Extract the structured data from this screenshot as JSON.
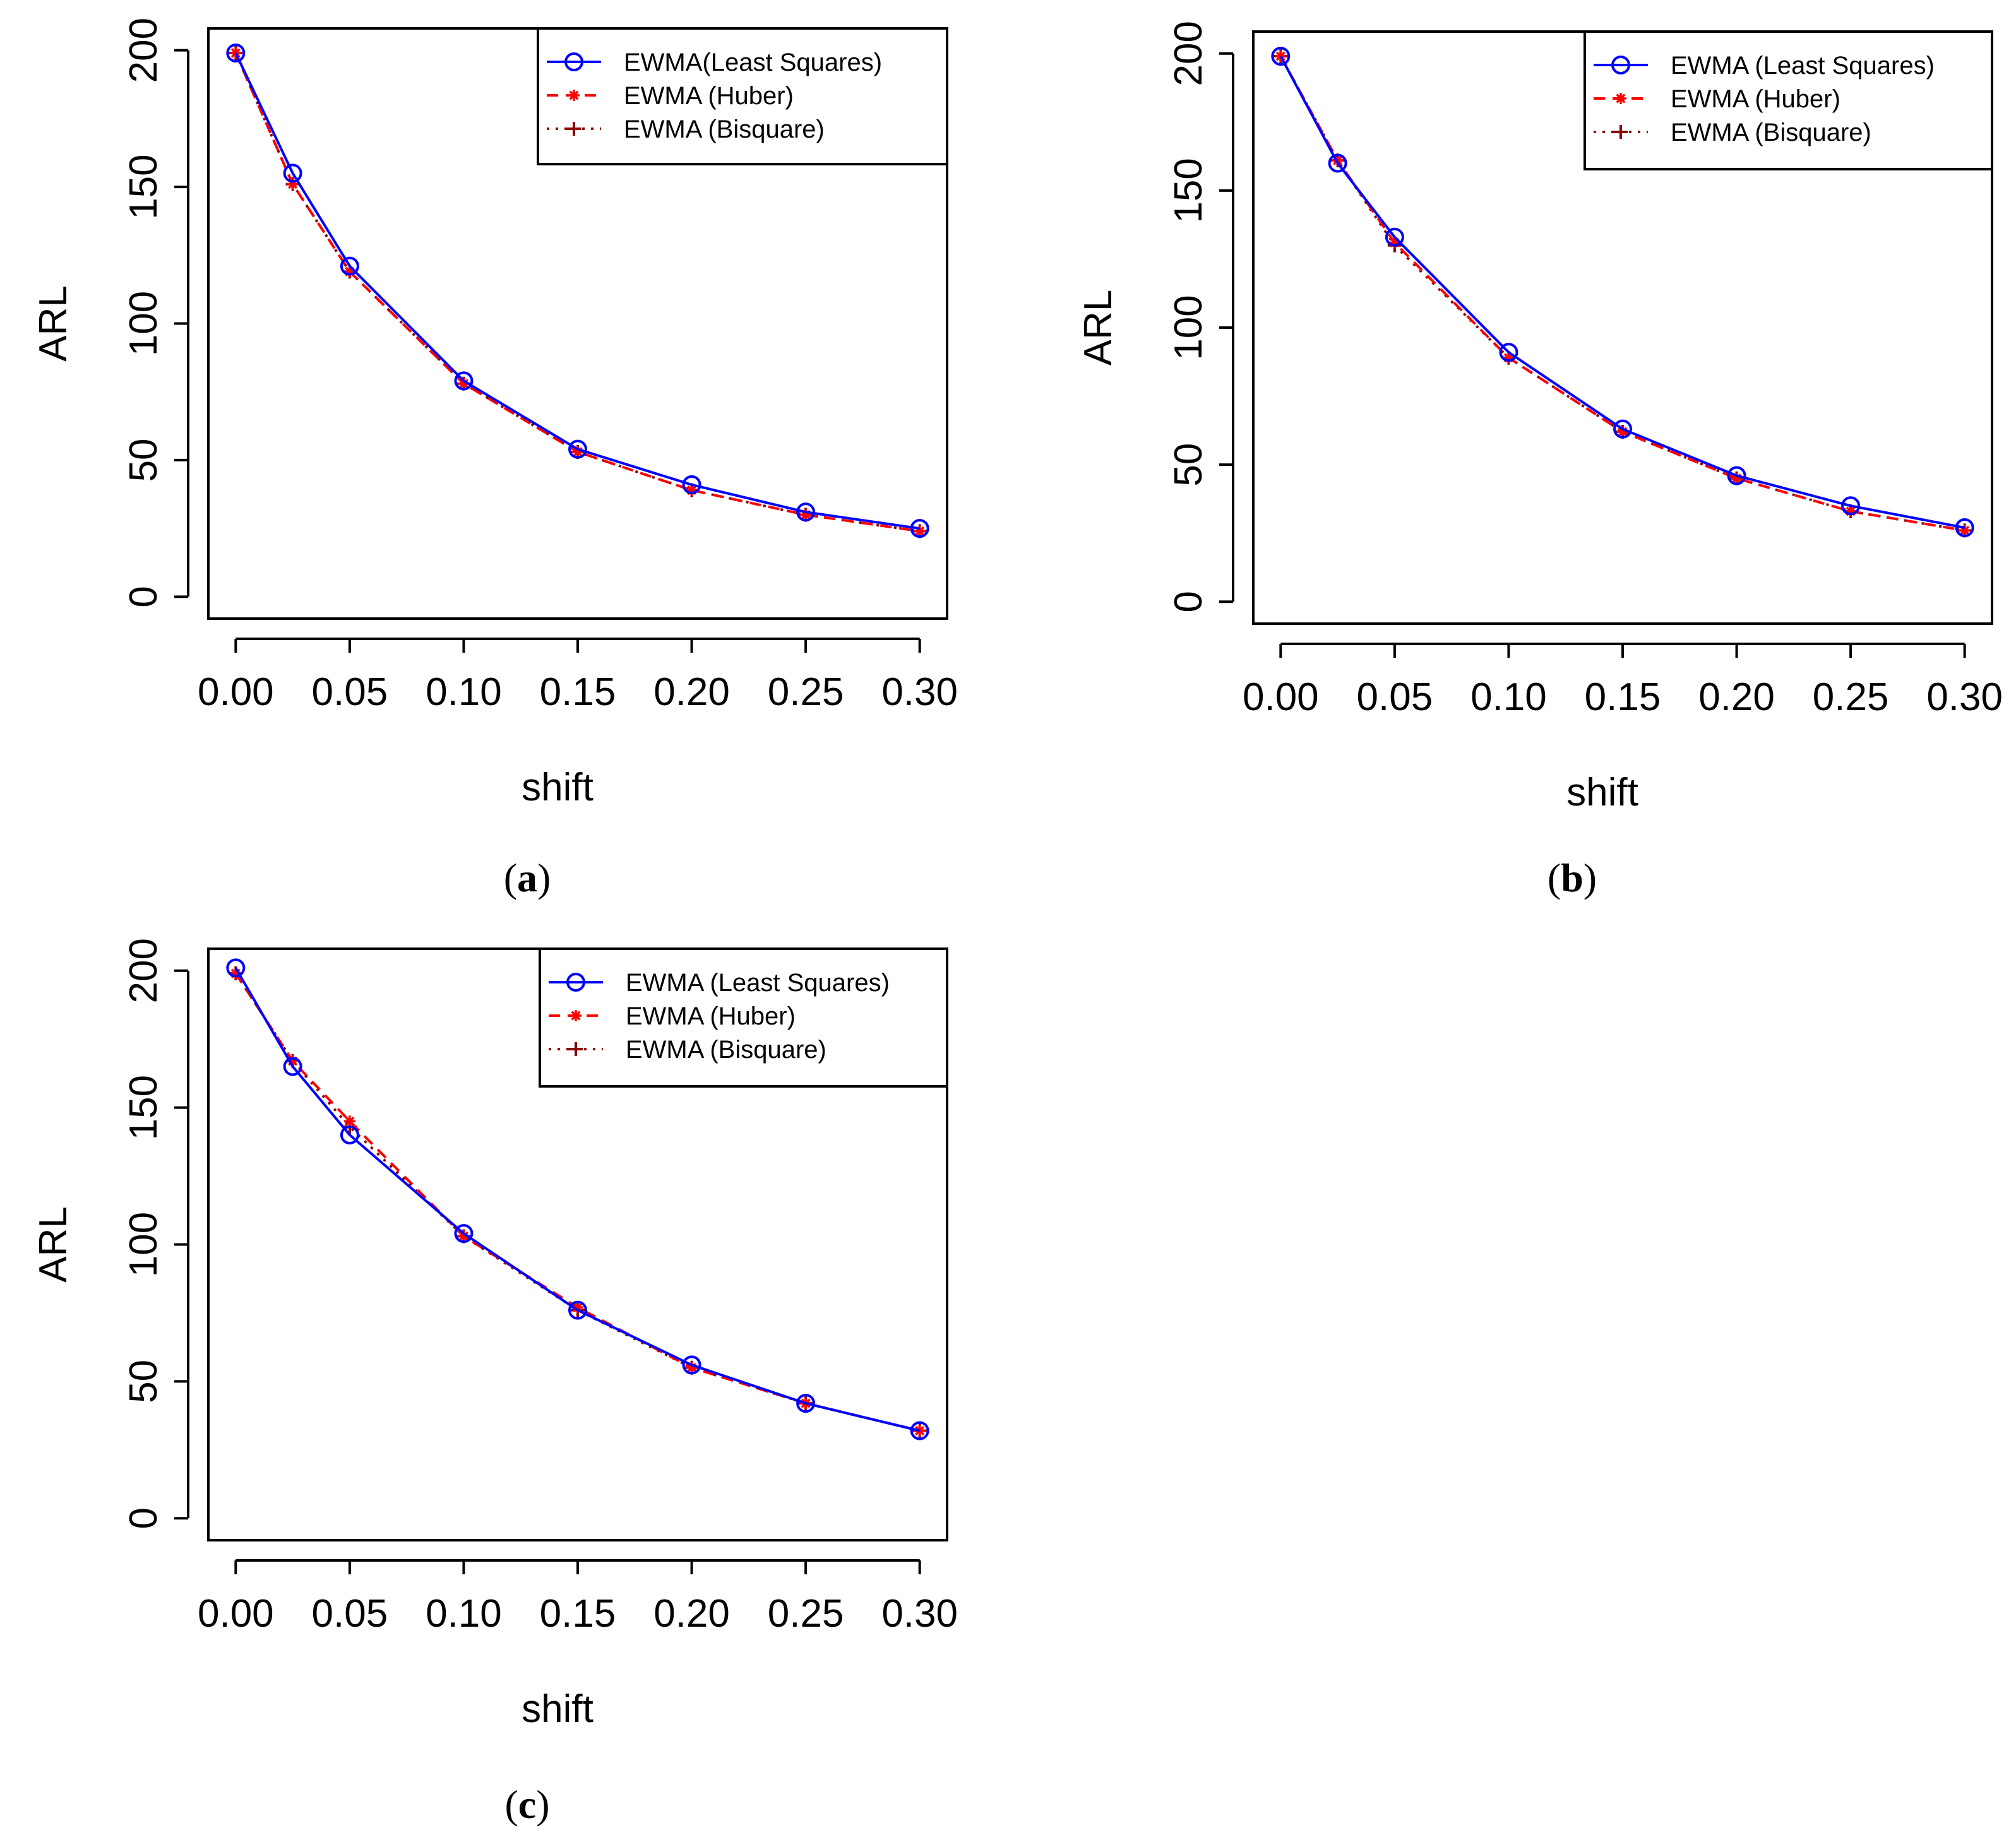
{
  "chart_data": [
    {
      "type": "line",
      "panel_label": "a",
      "title": "",
      "xlabel": "shift",
      "ylabel": "ARL",
      "x": [
        0,
        0.025,
        0.05,
        0.1,
        0.15,
        0.2,
        0.25,
        0.3
      ],
      "xticks": [
        "0.00",
        "0.05",
        "0.10",
        "0.15",
        "0.20",
        "0.25",
        "0.30"
      ],
      "xtick_values": [
        0,
        0.05,
        0.1,
        0.15,
        0.2,
        0.25,
        0.3
      ],
      "yticks": [
        "0",
        "50",
        "100",
        "150",
        "200"
      ],
      "ytick_values": [
        0,
        50,
        100,
        150,
        200
      ],
      "xlim": [
        -0.012,
        0.312
      ],
      "ylim": [
        -8,
        208
      ],
      "grid": false,
      "legend_position": "top-right",
      "series": [
        {
          "name": "EWMA(Least Squares)",
          "color": "#0000ff",
          "dash": "solid",
          "marker": "circle",
          "values": [
            199,
            155,
            121,
            79,
            54,
            41,
            31,
            25
          ]
        },
        {
          "name": "EWMA (Huber)",
          "color": "#ff0000",
          "dash": "dashed",
          "marker": "asterisk",
          "values": [
            199,
            151,
            119,
            78,
            53,
            39,
            30,
            24
          ]
        },
        {
          "name": "EWMA (Bisquare)",
          "color": "#8b0000",
          "dash": "dotted",
          "marker": "plus",
          "values": [
            199,
            151,
            119,
            78,
            53,
            39,
            30,
            24
          ]
        }
      ]
    },
    {
      "type": "line",
      "panel_label": "b",
      "title": "",
      "xlabel": "shift",
      "ylabel": "ARL",
      "x": [
        0,
        0.025,
        0.05,
        0.1,
        0.15,
        0.2,
        0.25,
        0.3
      ],
      "xticks": [
        "0.00",
        "0.05",
        "0.10",
        "0.15",
        "0.20",
        "0.25",
        "0.30"
      ],
      "xtick_values": [
        0,
        0.05,
        0.1,
        0.15,
        0.2,
        0.25,
        0.3
      ],
      "yticks": [
        "0",
        "50",
        "100",
        "150",
        "200"
      ],
      "ytick_values": [
        0,
        50,
        100,
        150,
        200
      ],
      "xlim": [
        -0.012,
        0.312
      ],
      "ylim": [
        -8,
        208
      ],
      "grid": false,
      "legend_position": "top-right",
      "series": [
        {
          "name": "EWMA (Least Squares)",
          "color": "#0000ff",
          "dash": "solid",
          "marker": "circle",
          "values": [
            199,
            160,
            133,
            91,
            63,
            46,
            35,
            27
          ]
        },
        {
          "name": "EWMA (Huber)",
          "color": "#ff0000",
          "dash": "dashed",
          "marker": "asterisk",
          "values": [
            199,
            161,
            131,
            89,
            62,
            45,
            33,
            26
          ]
        },
        {
          "name": "EWMA (Bisquare)",
          "color": "#8b0000",
          "dash": "dotted",
          "marker": "plus",
          "values": [
            199,
            161,
            130,
            89,
            62,
            45,
            33,
            26
          ]
        }
      ]
    },
    {
      "type": "line",
      "panel_label": "c",
      "title": "",
      "xlabel": "shift",
      "ylabel": "ARL",
      "x": [
        0,
        0.025,
        0.05,
        0.1,
        0.15,
        0.2,
        0.25,
        0.3
      ],
      "xticks": [
        "0.00",
        "0.05",
        "0.10",
        "0.15",
        "0.20",
        "0.25",
        "0.30"
      ],
      "xtick_values": [
        0,
        0.05,
        0.1,
        0.15,
        0.2,
        0.25,
        0.3
      ],
      "yticks": [
        "0",
        "50",
        "100",
        "150",
        "200"
      ],
      "ytick_values": [
        0,
        50,
        100,
        150,
        200
      ],
      "xlim": [
        -0.012,
        0.312
      ],
      "ylim": [
        -8,
        208
      ],
      "grid": false,
      "legend_position": "top-right",
      "series": [
        {
          "name": "EWMA (Least Squares)",
          "color": "#0000ff",
          "dash": "solid",
          "marker": "circle",
          "values": [
            201,
            165,
            140,
            104,
            76,
            56,
            42,
            32
          ]
        },
        {
          "name": "EWMA (Huber)",
          "color": "#ff0000",
          "dash": "dashed",
          "marker": "asterisk",
          "values": [
            199,
            167,
            145,
            103,
            77,
            55,
            42,
            32
          ]
        },
        {
          "name": "EWMA (Bisquare)",
          "color": "#8b0000",
          "dash": "dotted",
          "marker": "plus",
          "values": [
            199,
            167,
            143,
            103,
            76,
            55,
            42,
            32
          ]
        }
      ]
    }
  ]
}
